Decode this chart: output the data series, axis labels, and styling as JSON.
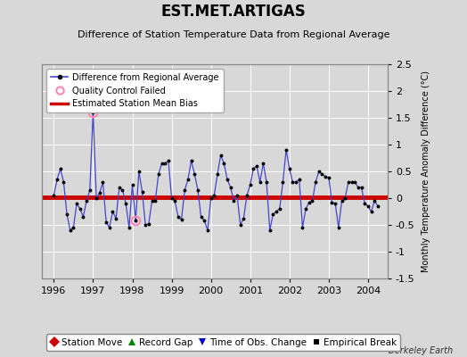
{
  "title": "EST.MET.ARTIGAS",
  "subtitle": "Difference of Station Temperature Data from Regional Average",
  "ylabel": "Monthly Temperature Anomaly Difference (°C)",
  "background_color": "#d8d8d8",
  "plot_bg_color": "#d8d8d8",
  "xlim": [
    1995.7,
    2004.5
  ],
  "ylim": [
    -1.5,
    2.5
  ],
  "yticks": [
    -1.5,
    -1.0,
    -0.5,
    0.0,
    0.5,
    1.0,
    1.5,
    2.0,
    2.5
  ],
  "xticks": [
    1996,
    1997,
    1998,
    1999,
    2000,
    2001,
    2002,
    2003,
    2004
  ],
  "mean_bias": 0.02,
  "bias_color": "#cc0000",
  "line_color": "#4444cc",
  "marker_color": "#000000",
  "qc_fail_color": "#ff88bb",
  "berkeley_earth_text": "Berkeley Earth",
  "time_series": [
    0.05,
    0.35,
    0.55,
    0.3,
    -0.3,
    -0.6,
    -0.55,
    -0.1,
    -0.2,
    -0.35,
    -0.05,
    0.15,
    1.6,
    0.0,
    0.1,
    0.3,
    -0.45,
    -0.55,
    -0.25,
    -0.38,
    0.2,
    0.15,
    -0.1,
    -0.55,
    0.25,
    -0.42,
    0.5,
    0.12,
    -0.5,
    -0.48,
    -0.05,
    -0.05,
    0.45,
    0.65,
    0.65,
    0.7,
    0.0,
    -0.05,
    -0.35,
    -0.4,
    0.15,
    0.35,
    0.7,
    0.45,
    0.15,
    -0.35,
    -0.42,
    -0.6,
    0.0,
    0.05,
    0.45,
    0.8,
    0.65,
    0.35,
    0.2,
    -0.05,
    0.05,
    -0.5,
    -0.38,
    0.05,
    0.25,
    0.55,
    0.6,
    0.3,
    0.65,
    0.3,
    -0.6,
    -0.3,
    -0.25,
    -0.2,
    0.3,
    0.9,
    0.55,
    0.3,
    0.3,
    0.35,
    -0.55,
    -0.2,
    -0.08,
    -0.05,
    0.3,
    0.5,
    0.45,
    0.4,
    0.38,
    -0.08,
    -0.1,
    -0.55,
    -0.05,
    0.0,
    0.3,
    0.3,
    0.3,
    0.2,
    0.2,
    -0.1,
    -0.15,
    -0.25,
    -0.05,
    -0.15
  ],
  "qc_fail_indices": [
    12,
    25
  ],
  "start_year": 1996,
  "points_per_year": 12
}
